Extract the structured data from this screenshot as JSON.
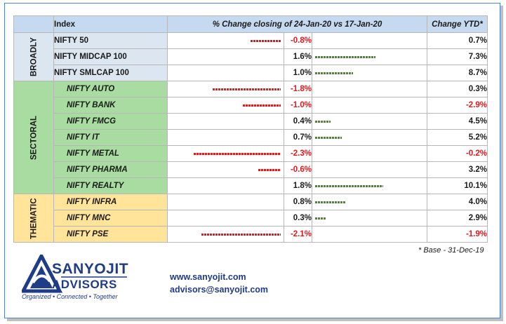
{
  "header": {
    "index": "Index",
    "change": "% Change closing of 24-Jan-20 vs 17-Jan-20",
    "ytd": "Change YTD*"
  },
  "groups": {
    "broadly": "BROADLY",
    "sectoral": "SECTORAL",
    "thematic": "THEMATIC"
  },
  "rows": [
    {
      "name": "NIFTY 50",
      "change": "-0.8%",
      "change_value": -0.8,
      "ytd": "0.7%"
    },
    {
      "name": "NIFTY MIDCAP 100",
      "change": "1.6%",
      "change_value": 1.6,
      "ytd": "7.3%"
    },
    {
      "name": "NIFTY SMLCAP 100",
      "change": "1.0%",
      "change_value": 1.0,
      "ytd": "8.7%"
    },
    {
      "name": "NIFTY AUTO",
      "change": "-1.8%",
      "change_value": -1.8,
      "ytd": "0.3%"
    },
    {
      "name": "NIFTY BANK",
      "change": "-1.0%",
      "change_value": -1.0,
      "ytd": "-2.9%"
    },
    {
      "name": "NIFTY FMCG",
      "change": "0.4%",
      "change_value": 0.4,
      "ytd": "4.5%"
    },
    {
      "name": "NIFTY IT",
      "change": "0.7%",
      "change_value": 0.7,
      "ytd": "5.2%"
    },
    {
      "name": "NIFTY METAL",
      "change": "-2.3%",
      "change_value": -2.3,
      "ytd": "-0.2%"
    },
    {
      "name": "NIFTY PHARMA",
      "change": "-0.6%",
      "change_value": -0.6,
      "ytd": "3.2%"
    },
    {
      "name": "NIFTY REALTY",
      "change": "1.8%",
      "change_value": 1.8,
      "ytd": "10.1%"
    },
    {
      "name": "NIFTY INFRA",
      "change": "0.8%",
      "change_value": 0.8,
      "ytd": "4.0%"
    },
    {
      "name": "NIFTY MNC",
      "change": "0.3%",
      "change_value": 0.3,
      "ytd": "2.9%"
    },
    {
      "name": "NIFTY PSE",
      "change": "-2.1%",
      "change_value": -2.1,
      "ytd": "-1.9%"
    }
  ],
  "footnote": "* Base - 31-Dec-19",
  "brand": {
    "line1": "SANYOJIT",
    "line2": "ADVISORS",
    "tagline": "Organized • Connected • Together",
    "website": "www.sanyojit.com",
    "email": "advisors@sanyojit.com"
  },
  "colors": {
    "negative": "#e0191f",
    "positive": "#4c8a2b",
    "brand": "#1f3c88",
    "broadly_bg": "#dce6f1",
    "sectoral_bg": "#a9dca1",
    "thematic_bg": "#ffe49a"
  }
}
